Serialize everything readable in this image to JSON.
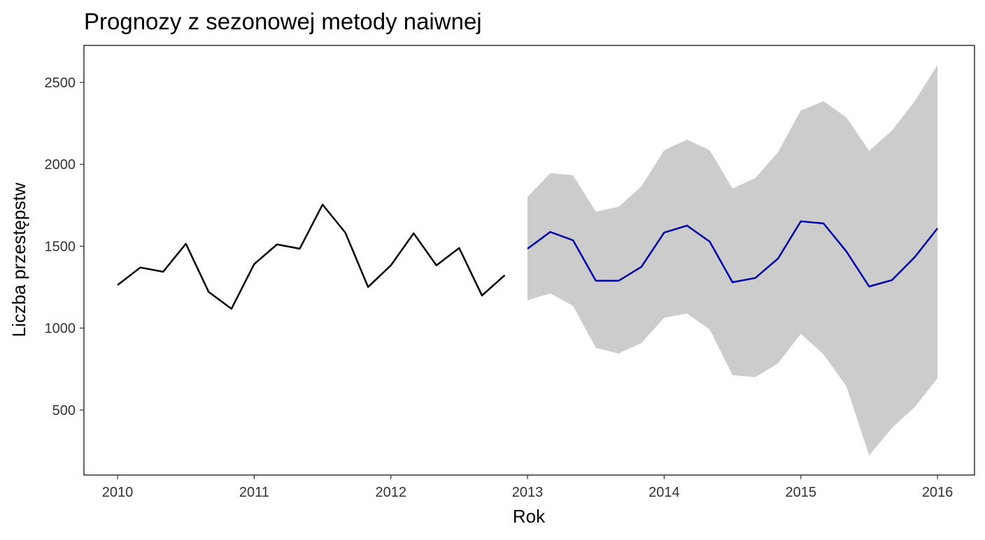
{
  "chart_data": {
    "type": "line",
    "title": "Prognozy z sezonowej metody naiwnej",
    "x_label": "Rok",
    "y_label": "Liczba przestępstw",
    "xlim": [
      2009.754,
      2016.271
    ],
    "ylim": [
      103,
      2726
    ],
    "xticks": [
      2010,
      2011,
      2012,
      2013,
      2014,
      2015,
      2016
    ],
    "yticks": [
      500,
      1000,
      1500,
      2000,
      2500
    ],
    "grid": false,
    "band_color": "#cccccc",
    "series": [
      {
        "color": "#000000",
        "x": [
          2010,
          2010.1667,
          2010.3333,
          2010.5,
          2010.6667,
          2010.8333,
          2011,
          2011.1667,
          2011.3333,
          2011.5,
          2011.6667,
          2011.8333,
          2012,
          2012.1667,
          2012.3333,
          2012.5,
          2012.6667,
          2012.8333
        ],
        "values": [
          1263,
          1370,
          1344,
          1515,
          1221,
          1118,
          1391,
          1511,
          1485,
          1754,
          1583,
          1251,
          1383,
          1579,
          1383,
          1489,
          1199,
          1323
        ]
      },
      {
        "color": "#0000aa",
        "x": [
          2013,
          2013.1667,
          2013.3333,
          2013.5,
          2013.6667,
          2013.8333,
          2014,
          2014.1667,
          2014.3333,
          2014.5,
          2014.6667,
          2014.8333,
          2015,
          2015.1667,
          2015.3333,
          2015.5,
          2015.6667,
          2015.8333,
          2016
        ],
        "values": [
          1485,
          1587,
          1536,
          1289,
          1289,
          1374,
          1583,
          1626,
          1528,
          1280,
          1306,
          1425,
          1652,
          1639,
          1468,
          1254,
          1293,
          1433,
          1609
        ],
        "upper": [
          1801,
          1946,
          1933,
          1711,
          1741,
          1865,
          2086,
          2150,
          2086,
          1852,
          1916,
          2074,
          2329,
          2385,
          2287,
          2082,
          2206,
          2385,
          2607
        ],
        "lower": [
          1170,
          1212,
          1135,
          880,
          845,
          909,
          1063,
          1089,
          991,
          713,
          700,
          785,
          965,
          840,
          645,
          223,
          390,
          518,
          693
        ]
      }
    ]
  }
}
